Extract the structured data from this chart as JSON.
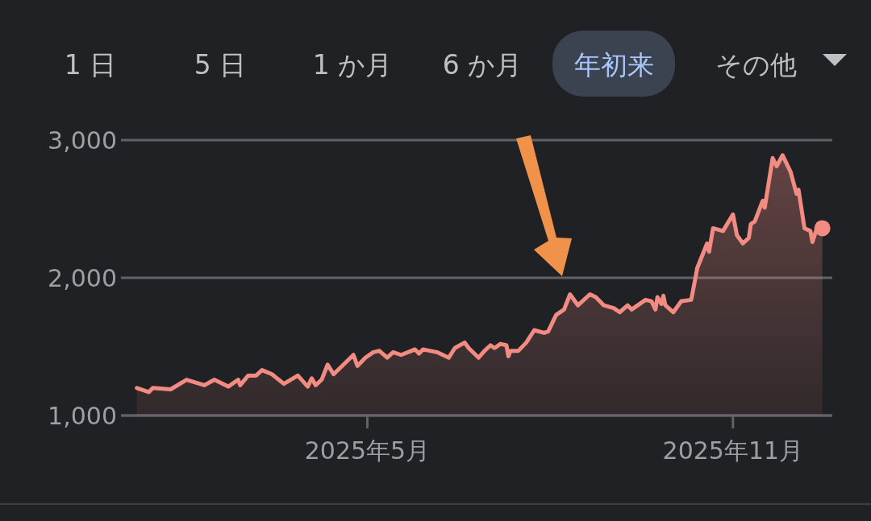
{
  "chart_data": {
    "type": "area",
    "annotations": [
      "1 日",
      "5 日",
      "1 か月",
      "6 か月",
      "年初来",
      "その他"
    ],
    "x": [
      "2025-01-05",
      "2025-01-11",
      "2025-01-13",
      "2025-01-22",
      "2025-01-30",
      "2025-02-08",
      "2025-02-13",
      "2025-02-20",
      "2025-02-25",
      "2025-02-26",
      "2025-03-02",
      "2025-03-06",
      "2025-03-09",
      "2025-03-14",
      "2025-03-20",
      "2025-03-27",
      "2025-04-01",
      "2025-04-03",
      "2025-04-05",
      "2025-04-08",
      "2025-04-11",
      "2025-04-14",
      "2025-04-24",
      "2025-04-26",
      "2025-04-30",
      "2025-05-04",
      "2025-05-07",
      "2025-05-11",
      "2025-05-14",
      "2025-05-18",
      "2025-05-25",
      "2025-05-27",
      "2025-05-29",
      "2025-06-05",
      "2025-06-11",
      "2025-06-14",
      "2025-06-19",
      "2025-06-21",
      "2025-06-26",
      "2025-06-29",
      "2025-07-02",
      "2025-07-04",
      "2025-07-07",
      "2025-07-10",
      "2025-07-11",
      "2025-07-12",
      "2025-07-16",
      "2025-07-20",
      "2025-07-24",
      "2025-07-29",
      "2025-07-31",
      "2025-08-04",
      "2025-08-08",
      "2025-08-11",
      "2025-08-15",
      "2025-08-21",
      "2025-08-24",
      "2025-08-28",
      "2025-09-02",
      "2025-09-05",
      "2025-09-09",
      "2025-09-11",
      "2025-09-18",
      "2025-09-21",
      "2025-09-23",
      "2025-09-24",
      "2025-09-26",
      "2025-09-27",
      "2025-09-28",
      "2025-10-02",
      "2025-10-06",
      "2025-10-11",
      "2025-10-13",
      "2025-10-14",
      "2025-10-19",
      "2025-10-20",
      "2025-10-22",
      "2025-10-27",
      "2025-11-01",
      "2025-11-03",
      "2025-11-06",
      "2025-11-09",
      "2025-11-10",
      "2025-11-12",
      "2025-11-16",
      "2025-11-17",
      "2025-11-21",
      "2025-11-23",
      "2025-11-26",
      "2025-11-30",
      "2025-12-03",
      "2025-12-04",
      "2025-12-07",
      "2025-12-10",
      "2025-12-11",
      "2025-12-13",
      "2025-12-16"
    ],
    "series": [
      {
        "color": "#f28b82",
        "values": [
          1200,
          1170,
          1200,
          1190,
          1260,
          1220,
          1260,
          1210,
          1260,
          1220,
          1290,
          1290,
          1330,
          1300,
          1230,
          1290,
          1210,
          1270,
          1220,
          1260,
          1370,
          1300,
          1440,
          1360,
          1420,
          1460,
          1470,
          1420,
          1460,
          1440,
          1480,
          1450,
          1480,
          1460,
          1420,
          1490,
          1530,
          1490,
          1420,
          1470,
          1510,
          1490,
          1520,
          1510,
          1430,
          1470,
          1470,
          1530,
          1620,
          1600,
          1610,
          1730,
          1770,
          1880,
          1800,
          1880,
          1860,
          1800,
          1780,
          1750,
          1800,
          1770,
          1840,
          1830,
          1770,
          1860,
          1810,
          1870,
          1800,
          1750,
          1830,
          1840,
          1990,
          2070,
          2250,
          2190,
          2360,
          2340,
          2460,
          2310,
          2250,
          2290,
          2390,
          2410,
          2560,
          2510,
          2870,
          2810,
          2890,
          2770,
          2610,
          2640,
          2360,
          2340,
          2260,
          2350,
          2360
        ]
      }
    ],
    "xlim": [
      "2024-12-28",
      "2025-12-21"
    ],
    "xticks": [
      {
        "value": "2025-05",
        "label": "2025年5月"
      },
      {
        "value": "2025-11",
        "label": "2025年11月"
      }
    ],
    "ylim": [
      1000,
      3000
    ],
    "yticks": [
      {
        "value": 1000,
        "label": "1,000"
      },
      {
        "value": 2000,
        "label": "2,000"
      },
      {
        "value": 3000,
        "label": "3,000"
      }
    ],
    "grid": "y"
  }
}
